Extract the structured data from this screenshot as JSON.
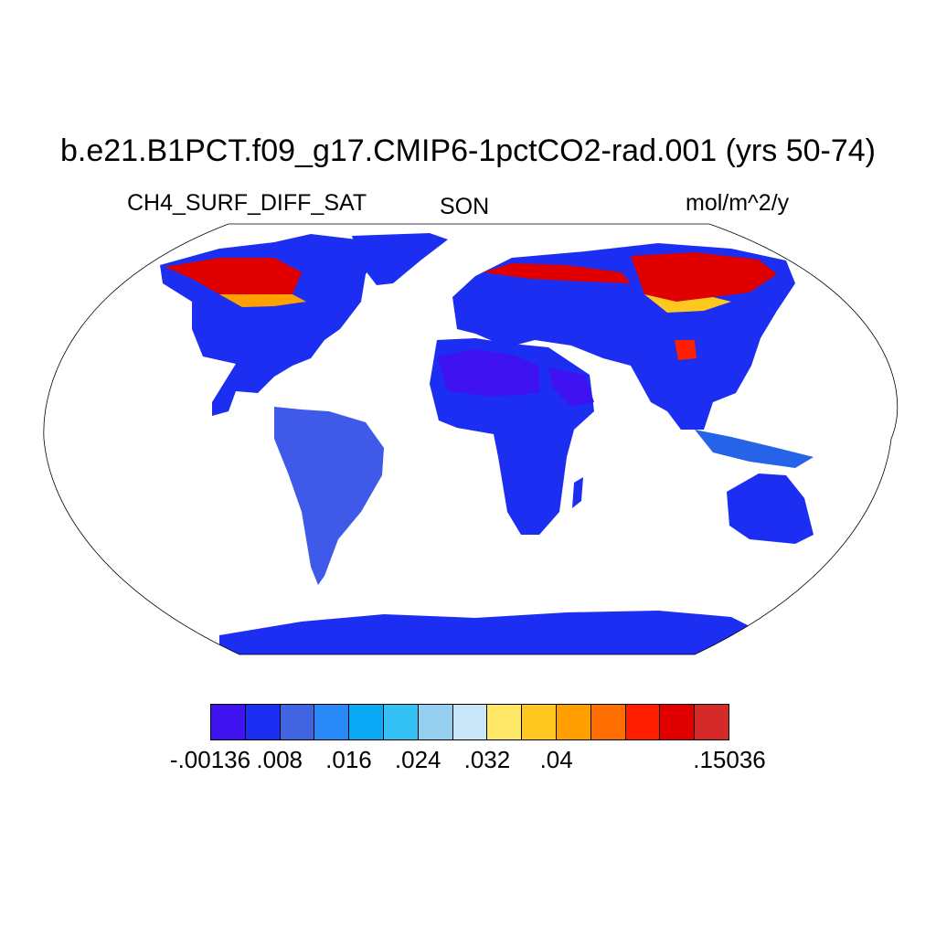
{
  "title": "b.e21.B1PCT.f09_g17.CMIP6-1pctCO2-rad.001 (yrs 50-74)",
  "variable": "CH4_SURF_DIFF_SAT",
  "season": "SON",
  "units": "mol/m^2/y",
  "colorbar": {
    "colors": [
      "#3f12f2",
      "#1b2ef2",
      "#4165e0",
      "#2888f5",
      "#0aa8f5",
      "#34c2f5",
      "#96cef0",
      "#c8e6f8",
      "#ffe868",
      "#ffc81e",
      "#ffa000",
      "#ff6e00",
      "#ff1e00",
      "#e00000",
      "#d62a2a"
    ],
    "tick_labels": [
      {
        "label": "-.00136",
        "boundary": 0
      },
      {
        "label": ".008",
        "boundary": 2
      },
      {
        "label": ".016",
        "boundary": 4
      },
      {
        "label": ".024",
        "boundary": 6
      },
      {
        "label": ".032",
        "boundary": 8
      },
      {
        "label": ".04",
        "boundary": 10
      },
      {
        "label": ".15036",
        "boundary": 15
      }
    ]
  }
}
